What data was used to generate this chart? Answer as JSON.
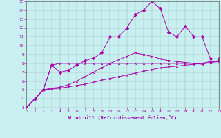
{
  "bg_color": "#c8f0f0",
  "line_color": "#aa00aa",
  "xlabel": "Windchill (Refroidissement éolien,°C)",
  "xlim": [
    0,
    23
  ],
  "ylim": [
    3,
    15
  ],
  "xticks": [
    0,
    1,
    2,
    3,
    4,
    5,
    6,
    7,
    8,
    9,
    10,
    11,
    12,
    13,
    14,
    15,
    16,
    17,
    18,
    19,
    20,
    21,
    22,
    23
  ],
  "yticks": [
    3,
    4,
    5,
    6,
    7,
    8,
    9,
    10,
    11,
    12,
    13,
    14,
    15
  ],
  "s_straight_x": [
    0,
    1,
    2,
    3,
    4,
    5,
    6,
    7,
    8,
    9,
    10,
    11,
    12,
    13,
    14,
    15,
    16,
    17,
    18,
    19,
    20,
    21,
    22,
    23
  ],
  "s_straight_y": [
    3.0,
    4.0,
    5.0,
    5.1,
    5.2,
    5.35,
    5.5,
    5.65,
    5.85,
    6.1,
    6.3,
    6.5,
    6.7,
    6.9,
    7.1,
    7.3,
    7.5,
    7.6,
    7.7,
    7.8,
    7.9,
    8.0,
    8.1,
    8.2
  ],
  "s_flat_x": [
    0,
    1,
    2,
    3,
    4,
    5,
    6,
    7,
    8,
    9,
    10,
    11,
    12,
    13,
    14,
    15,
    16,
    17,
    18,
    19,
    20,
    21,
    22,
    23
  ],
  "s_flat_y": [
    3.0,
    4.0,
    5.0,
    7.8,
    8.0,
    8.0,
    8.0,
    8.0,
    8.0,
    8.0,
    8.0,
    8.0,
    8.0,
    8.0,
    8.0,
    8.0,
    8.0,
    8.0,
    8.0,
    8.0,
    8.0,
    8.0,
    8.2,
    8.3
  ],
  "s_mid_x": [
    0,
    1,
    2,
    3,
    4,
    5,
    6,
    7,
    8,
    9,
    10,
    11,
    12,
    13,
    14,
    15,
    16,
    17,
    18,
    19,
    20,
    21,
    22,
    23
  ],
  "s_mid_y": [
    3.0,
    4.0,
    5.0,
    5.2,
    5.3,
    5.6,
    6.0,
    6.5,
    7.0,
    7.5,
    8.0,
    8.4,
    8.8,
    9.2,
    9.0,
    8.8,
    8.5,
    8.3,
    8.2,
    8.1,
    8.0,
    7.9,
    8.1,
    8.3
  ],
  "s_peak_x": [
    0,
    1,
    2,
    3,
    4,
    5,
    6,
    7,
    8,
    9,
    10,
    11,
    12,
    13,
    14,
    15,
    16,
    17,
    18,
    19,
    20,
    21,
    22,
    23
  ],
  "s_peak_y": [
    3.0,
    4.0,
    5.0,
    7.8,
    7.0,
    7.2,
    7.8,
    8.3,
    8.6,
    9.2,
    11.0,
    11.0,
    12.0,
    13.5,
    14.0,
    15.0,
    14.2,
    11.5,
    11.0,
    12.2,
    11.0,
    11.0,
    8.5,
    8.5
  ]
}
